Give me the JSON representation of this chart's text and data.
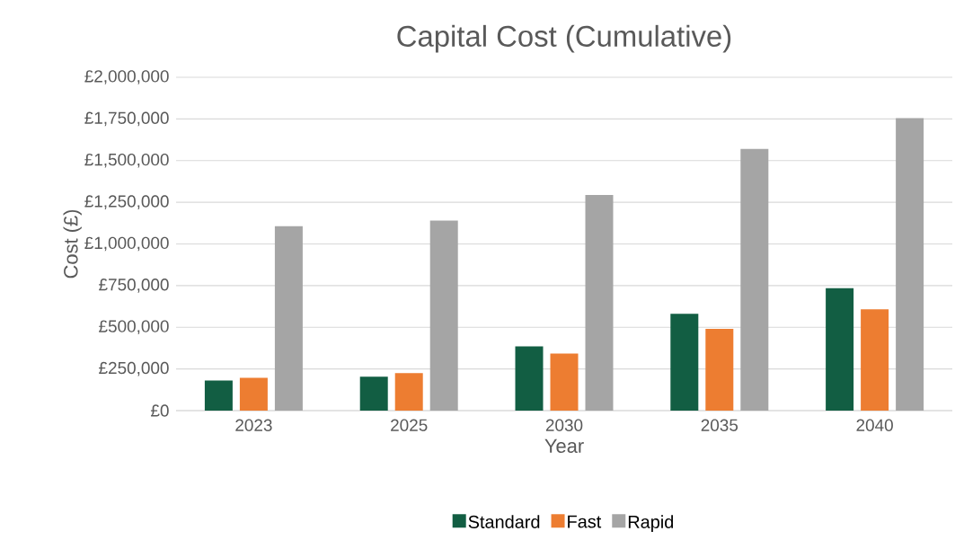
{
  "chart_data": {
    "type": "bar",
    "title": "Capital Cost (Cumulative)",
    "xlabel": "Year",
    "ylabel": "Cost (£)",
    "categories": [
      "2023",
      "2025",
      "2030",
      "2035",
      "2040"
    ],
    "series": [
      {
        "name": "Standard",
        "color": "#125e43",
        "values": [
          180000,
          203000,
          385000,
          581000,
          734000
        ]
      },
      {
        "name": "Fast",
        "color": "#ed7d31",
        "values": [
          196000,
          225000,
          342000,
          490000,
          608000
        ]
      },
      {
        "name": "Rapid",
        "color": "#a5a5a5",
        "values": [
          1107000,
          1140000,
          1294000,
          1570000,
          1755000
        ]
      }
    ],
    "ylim": [
      0,
      2000000
    ],
    "yticks": [
      {
        "value": 0,
        "label": "£0"
      },
      {
        "value": 250000,
        "label": "£250,000"
      },
      {
        "value": 500000,
        "label": "£500,000"
      },
      {
        "value": 750000,
        "label": "£750,000"
      },
      {
        "value": 1000000,
        "label": "£1,000,000"
      },
      {
        "value": 1250000,
        "label": "£1,250,000"
      },
      {
        "value": 1500000,
        "label": "£1,500,000"
      },
      {
        "value": 1750000,
        "label": "£1,750,000"
      },
      {
        "value": 2000000,
        "label": "£2,000,000"
      }
    ],
    "grid": "y",
    "legend": "bottom"
  }
}
